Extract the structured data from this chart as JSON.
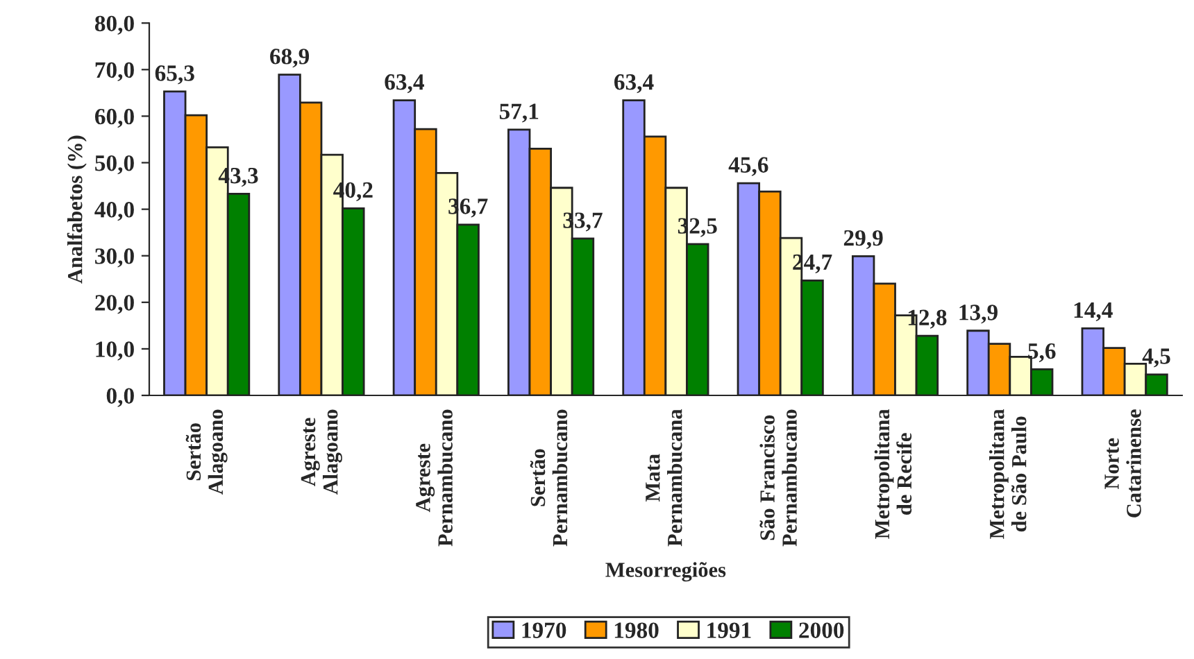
{
  "chart_data": {
    "type": "bar",
    "xlabel": "Mesorregiões",
    "ylabel": "Analfabetos (%)",
    "categories": [
      "Sertão\nAlagoano",
      "Agreste\nAlagoano",
      "Agreste\nPernambucano",
      "Sertão\nPernambucano",
      "Mata\nPernambucana",
      "São Francisco\nPernambucano",
      "Metropolitana\nde Recife",
      "Metropolitana\nde São Paulo",
      "Norte\nCatarinense"
    ],
    "series": [
      {
        "name": "1970",
        "color": "#9999ff",
        "values": [
          65.3,
          68.9,
          63.4,
          57.1,
          63.4,
          45.6,
          29.9,
          13.9,
          14.4
        ],
        "value_labels": [
          "65,3",
          "68,9",
          "63,4",
          "57,1",
          "63,4",
          "45,6",
          "29,9",
          "13,9",
          "14,4"
        ]
      },
      {
        "name": "1980",
        "color": "#ff9900",
        "values": [
          60.2,
          62.9,
          57.2,
          53.0,
          55.6,
          43.8,
          24.0,
          11.1,
          10.2
        ]
      },
      {
        "name": "1991",
        "color": "#ffffcc",
        "values": [
          53.3,
          51.7,
          47.8,
          44.6,
          44.6,
          33.8,
          17.2,
          8.3,
          6.8
        ]
      },
      {
        "name": "2000",
        "color": "#008000",
        "values": [
          43.3,
          40.2,
          36.7,
          33.7,
          32.5,
          24.7,
          12.8,
          5.6,
          4.5
        ],
        "value_labels": [
          "43,3",
          "40,2",
          "36,7",
          "33,7",
          "32,5",
          "24,7",
          "12,8",
          "5,6",
          "4,5"
        ]
      }
    ],
    "ylim": [
      0,
      80
    ],
    "yticks": [
      {
        "value": 0,
        "label": "0,0"
      },
      {
        "value": 10,
        "label": "10,0"
      },
      {
        "value": 20,
        "label": "20,0"
      },
      {
        "value": 30,
        "label": "30,0"
      },
      {
        "value": 40,
        "label": "40,0"
      },
      {
        "value": 50,
        "label": "50,0"
      },
      {
        "value": 60,
        "label": "60,0"
      },
      {
        "value": 70,
        "label": "70,0"
      },
      {
        "value": 80,
        "label": "80,0"
      }
    ],
    "grid": false,
    "legend": "bottom"
  }
}
